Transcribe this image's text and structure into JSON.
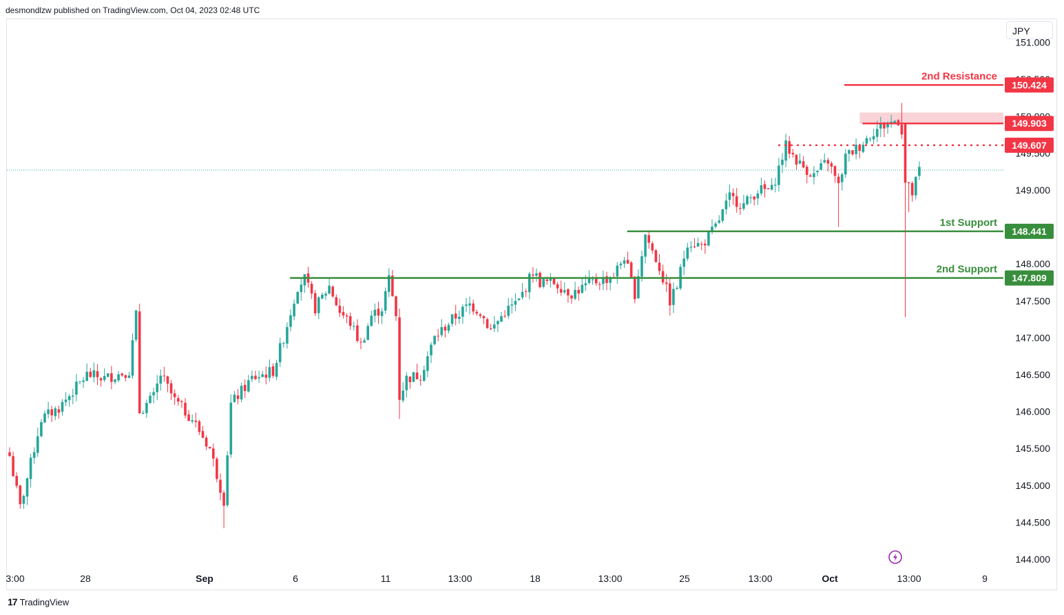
{
  "header": {
    "publisher_line": "desmondlzw published on TradingView.com, Oct 04, 2023 02:48 UTC"
  },
  "currency_button": "JPY",
  "footer": {
    "logo_mark": "17",
    "logo_text": "TradingView"
  },
  "colors": {
    "up": "#26a69a",
    "down": "#f23645",
    "support": "#388e3c",
    "resistance": "#f23645",
    "zone": "#f8c8cd",
    "grid": "#e0e3eb",
    "text": "#131722"
  },
  "icons": {
    "replay": "lightning-icon"
  },
  "chart_data": {
    "type": "candlestick",
    "title": "",
    "xlabel": "",
    "ylabel": "",
    "ylim": [
      143.9,
      151.3
    ],
    "grid": false,
    "y_ticks": [
      "151.000",
      "150.500",
      "150.000",
      "149.500",
      "149.000",
      "148.500",
      "148.000",
      "147.500",
      "147.000",
      "146.500",
      "146.000",
      "145.500",
      "145.000",
      "144.500",
      "144.000"
    ],
    "x_ticks": [
      "3:00",
      "28",
      "Sep",
      "6",
      "11",
      "13:00",
      "18",
      "13:00",
      "25",
      "13:00",
      "Oct",
      "13:00",
      "9"
    ],
    "last_price": 149.27,
    "levels": [
      {
        "label": "2nd Resistance",
        "value": 150.424,
        "value_label": "150.424",
        "role": "resistance",
        "style": "solid",
        "from_index": 242
      },
      {
        "label": "",
        "value": 149.903,
        "value_label": "149.903",
        "role": "resistance",
        "style": "solid",
        "from_index": 244
      },
      {
        "label": "",
        "value": 149.607,
        "value_label": "149.607",
        "role": "resistance",
        "style": "dotted",
        "from_index": 220
      },
      {
        "label": "1st Support",
        "value": 148.441,
        "value_label": "148.441",
        "role": "support",
        "style": "solid",
        "from_index": 177
      },
      {
        "label": "2nd Support",
        "value": 147.809,
        "value_label": "147.809",
        "role": "support",
        "style": "solid",
        "from_index": 81
      }
    ],
    "zone": {
      "low": 149.9,
      "high": 150.05,
      "from_index": 244
    },
    "anchors": [
      {
        "i": 0,
        "v": 145.4
      },
      {
        "i": 3,
        "v": 144.7
      },
      {
        "i": 9,
        "v": 145.9
      },
      {
        "i": 14,
        "v": 146.05
      },
      {
        "i": 22,
        "v": 146.5
      },
      {
        "i": 27,
        "v": 146.45
      },
      {
        "i": 34,
        "v": 146.55
      },
      {
        "i": 36,
        "v": 147.3
      },
      {
        "i": 37,
        "v": 146.0
      },
      {
        "i": 41,
        "v": 146.2
      },
      {
        "i": 43,
        "v": 146.5
      },
      {
        "i": 47,
        "v": 146.15
      },
      {
        "i": 52,
        "v": 145.9
      },
      {
        "i": 57,
        "v": 145.5
      },
      {
        "i": 61,
        "v": 144.8
      },
      {
        "i": 63,
        "v": 146.1
      },
      {
        "i": 69,
        "v": 146.45
      },
      {
        "i": 75,
        "v": 146.55
      },
      {
        "i": 78,
        "v": 147.0
      },
      {
        "i": 82,
        "v": 147.7
      },
      {
        "i": 84,
        "v": 147.8
      },
      {
        "i": 87,
        "v": 147.4
      },
      {
        "i": 91,
        "v": 147.7
      },
      {
        "i": 94,
        "v": 147.35
      },
      {
        "i": 97,
        "v": 147.2
      },
      {
        "i": 100,
        "v": 146.9
      },
      {
        "i": 103,
        "v": 147.3
      },
      {
        "i": 106,
        "v": 147.4
      },
      {
        "i": 108,
        "v": 147.8
      },
      {
        "i": 110,
        "v": 147.3
      },
      {
        "i": 111,
        "v": 146.2
      },
      {
        "i": 113,
        "v": 146.45
      },
      {
        "i": 117,
        "v": 146.5
      },
      {
        "i": 121,
        "v": 147.0
      },
      {
        "i": 126,
        "v": 147.25
      },
      {
        "i": 131,
        "v": 147.45
      },
      {
        "i": 134,
        "v": 147.35
      },
      {
        "i": 137,
        "v": 147.1
      },
      {
        "i": 141,
        "v": 147.35
      },
      {
        "i": 145,
        "v": 147.5
      },
      {
        "i": 149,
        "v": 147.9
      },
      {
        "i": 151,
        "v": 147.75
      },
      {
        "i": 155,
        "v": 147.75
      },
      {
        "i": 160,
        "v": 147.6
      },
      {
        "i": 166,
        "v": 147.75
      },
      {
        "i": 170,
        "v": 147.8
      },
      {
        "i": 172,
        "v": 147.85
      },
      {
        "i": 175,
        "v": 148.1
      },
      {
        "i": 178,
        "v": 147.6
      },
      {
        "i": 181,
        "v": 148.4
      },
      {
        "i": 185,
        "v": 147.95
      },
      {
        "i": 188,
        "v": 147.5
      },
      {
        "i": 190,
        "v": 147.7
      },
      {
        "i": 193,
        "v": 148.3
      },
      {
        "i": 197,
        "v": 148.25
      },
      {
        "i": 201,
        "v": 148.5
      },
      {
        "i": 205,
        "v": 148.9
      },
      {
        "i": 209,
        "v": 148.8
      },
      {
        "i": 213,
        "v": 149.0
      },
      {
        "i": 217,
        "v": 149.0
      },
      {
        "i": 221,
        "v": 149.6
      },
      {
        "i": 225,
        "v": 149.35
      },
      {
        "i": 229,
        "v": 149.2
      },
      {
        "i": 233,
        "v": 149.4
      },
      {
        "i": 236,
        "v": 149.05
      },
      {
        "i": 238,
        "v": 149.45
      },
      {
        "i": 242,
        "v": 149.6
      },
      {
        "i": 246,
        "v": 149.8
      },
      {
        "i": 250,
        "v": 149.9
      },
      {
        "i": 253,
        "v": 149.95
      },
      {
        "i": 254,
        "v": 149.8
      },
      {
        "i": 255,
        "v": 149.1
      },
      {
        "i": 257,
        "v": 148.95
      },
      {
        "i": 259,
        "v": 149.27
      }
    ]
  }
}
